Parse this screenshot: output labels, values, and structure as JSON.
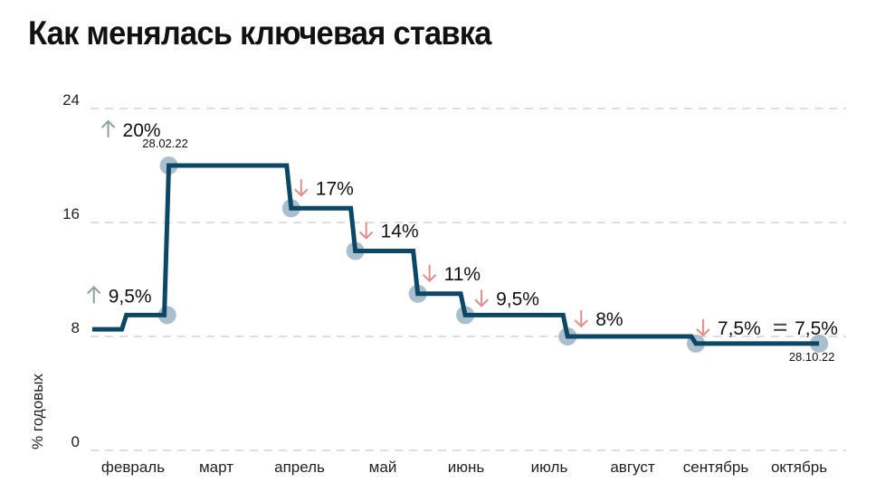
{
  "chart_data": {
    "type": "line",
    "title": "Как менялась ключевая ставка",
    "ylabel": "% годовых",
    "xlabel": "",
    "ylim": [
      0,
      24
    ],
    "yticks": [
      0,
      8,
      16,
      24
    ],
    "grid": true,
    "categories": [
      "февраль",
      "март",
      "апрель",
      "май",
      "июнь",
      "июль",
      "август",
      "сентябрь",
      "октябрь"
    ],
    "start": {
      "m": -0.49,
      "v": 8.5
    },
    "steps": [
      {
        "m": -0.08,
        "v": 9.5
      },
      {
        "m": 0.43,
        "v": 20
      },
      {
        "m": 1.9,
        "v": 17
      },
      {
        "m": 2.67,
        "v": 14
      },
      {
        "m": 3.42,
        "v": 11
      },
      {
        "m": 3.99,
        "v": 9.5
      },
      {
        "m": 5.22,
        "v": 8
      },
      {
        "m": 6.76,
        "v": 7.5
      }
    ],
    "end": {
      "m": 8.24,
      "v": 7.5
    },
    "annotations": [
      {
        "m": 0.41,
        "v": 9.5,
        "direction": "up",
        "label": "9,5%"
      },
      {
        "m": 0.43,
        "v": 20,
        "direction": "up",
        "label": "20%",
        "date": "28.02.22"
      },
      {
        "m": 1.9,
        "v": 17,
        "direction": "down",
        "label": "17%"
      },
      {
        "m": 2.67,
        "v": 14,
        "direction": "down",
        "label": "14%"
      },
      {
        "m": 3.42,
        "v": 11,
        "direction": "down",
        "label": "11%"
      },
      {
        "m": 3.99,
        "v": 9.5,
        "direction": "down",
        "label": "9,5%"
      },
      {
        "m": 5.22,
        "v": 8,
        "direction": "down",
        "label": "8%"
      },
      {
        "m": 6.76,
        "v": 7.5,
        "direction": "down",
        "label": "7,5%"
      },
      {
        "m": 8.24,
        "v": 7.5,
        "direction": "same",
        "label": "7,5%",
        "date": "28.10.22"
      }
    ],
    "colors": {
      "line": "#0d4766",
      "marker": "#9ab4c6",
      "up": "#8fa39c",
      "down": "#e88c8c",
      "same": "#555555",
      "grid": "#cccccc"
    }
  }
}
